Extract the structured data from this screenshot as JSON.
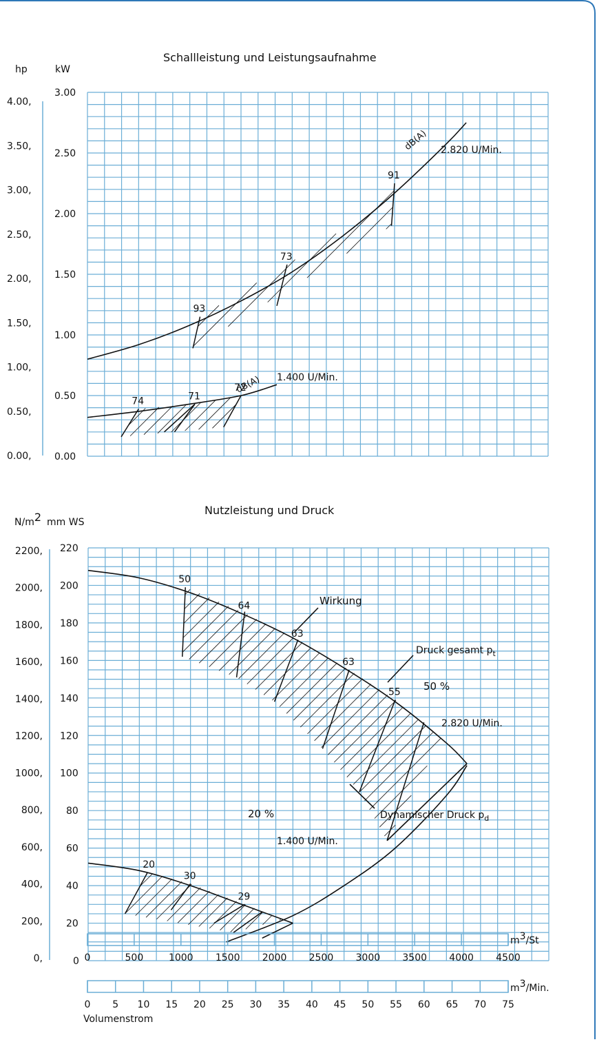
{
  "colors": {
    "border": "#2e78b8",
    "grid": "#6baed6",
    "curve": "#111111"
  },
  "chart_data": [
    {
      "type": "line",
      "title": "Schallleistung und Leistungsaufnahme",
      "left_axis_unit": "hp",
      "right_axis_unit": "kW",
      "hp_ticks": [
        "4.00,",
        "3.50,",
        "3.00,",
        "2.50,",
        "2.00,",
        "1.50,",
        "1.00,",
        "0.50,",
        "0.00,"
      ],
      "kw_ticks": [
        "3.00",
        "2.50",
        "2.00",
        "1.50",
        "1.00",
        "0.50",
        "0.00"
      ],
      "ylim": [
        0,
        3
      ],
      "xlim": [
        0,
        4500
      ],
      "series": [
        {
          "name": "2.820 U/Min.",
          "tag": "dB(A)",
          "x": [
            0,
            500,
            1000,
            1500,
            2000,
            2500,
            3000,
            3500,
            3700
          ],
          "y": [
            0.8,
            0.92,
            1.08,
            1.28,
            1.52,
            1.82,
            2.17,
            2.57,
            2.75
          ]
        },
        {
          "name": "1.400 U/Min.",
          "tag": "dB(A)",
          "x": [
            0,
            500,
            1000,
            1500,
            1850
          ],
          "y": [
            0.32,
            0.37,
            0.43,
            0.5,
            0.59
          ]
        }
      ],
      "point_labels": [
        {
          "text": "93",
          "x": 1100,
          "y": 1.15
        },
        {
          "text": "73",
          "x": 1950,
          "y": 1.58
        },
        {
          "text": "91",
          "x": 3000,
          "y": 2.25
        },
        {
          "text": "74",
          "x": 500,
          "y": 0.39
        },
        {
          "text": "71",
          "x": 1050,
          "y": 0.43
        },
        {
          "text": "72",
          "x": 1500,
          "y": 0.5
        }
      ]
    },
    {
      "type": "line",
      "title": "Nutzleistung und Druck",
      "left_axis_unit": "N/m2",
      "right_axis_unit": "mm WS",
      "nm2_ticks": [
        "2200,",
        "2000,",
        "1800,",
        "1600,",
        "1400,",
        "1200,",
        "1000,",
        "800,",
        "600,",
        "400,",
        "200,",
        "0,"
      ],
      "mmws_ticks": [
        "220",
        "200",
        "180",
        "160",
        "140",
        "120",
        "100",
        "80",
        "60",
        "40",
        "20",
        "0"
      ],
      "ylim": [
        0,
        220
      ],
      "xlim": [
        0,
        4500
      ],
      "series": [
        {
          "name": "Druck gesamt pt",
          "x": [
            0,
            500,
            1000,
            1500,
            2000,
            2500,
            3000,
            3500,
            3700
          ],
          "y": [
            208,
            204,
            196,
            185,
            172,
            156,
            138,
            116,
            105
          ]
        },
        {
          "name": "1.400 U/Min.",
          "x": [
            0,
            500,
            1000,
            1500,
            2000
          ],
          "y": [
            52,
            48,
            40,
            30,
            20
          ]
        },
        {
          "name": "Dynamischer Druck pd",
          "x": [
            1350,
            2000,
            2500,
            3000,
            3500,
            3700
          ],
          "y": [
            10,
            24,
            40,
            60,
            88,
            104
          ]
        }
      ],
      "annotations": {
        "wirkung": "Wirkung",
        "druck_gesamt": "Druck gesamt p",
        "druck_gesamt_sub": "t",
        "rpm_high": "2.820 U/Min.",
        "rpm_low": "1.400 U/Min.",
        "dyn": "Dynamischer Druck p",
        "dyn_sub": "d",
        "pct_50": "50 %",
        "pct_20": "20 %"
      },
      "point_labels": [
        {
          "text": "50",
          "x": 950,
          "y": 199
        },
        {
          "text": "64",
          "x": 1530,
          "y": 185
        },
        {
          "text": "63",
          "x": 2050,
          "y": 170
        },
        {
          "text": "63",
          "x": 2550,
          "y": 155
        },
        {
          "text": "55",
          "x": 3000,
          "y": 139
        },
        {
          "text": "20",
          "x": 600,
          "y": 47
        },
        {
          "text": "30",
          "x": 1000,
          "y": 41
        },
        {
          "text": "29",
          "x": 1530,
          "y": 30
        }
      ]
    }
  ],
  "scales": {
    "m3_st_unit": "m3/St",
    "m3_st_ticks": [
      "0",
      "500",
      "1000",
      "1500",
      "2000",
      "2500",
      "3000",
      "3500",
      "4000",
      "4500"
    ],
    "m3_min_unit": "m3/Min.",
    "m3_min_ticks": [
      "0",
      "5",
      "10",
      "15",
      "20",
      "25",
      "30",
      "35",
      "40",
      "45",
      "50",
      "55",
      "60",
      "65",
      "70",
      "75"
    ],
    "xlabel": "Volumenstrom"
  }
}
